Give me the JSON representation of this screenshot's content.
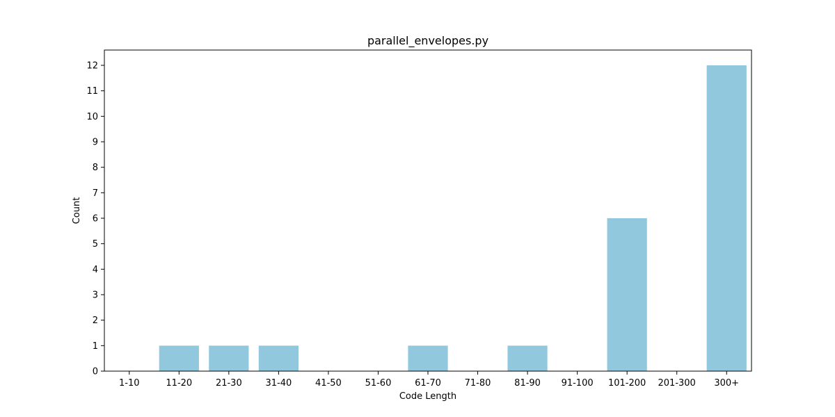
{
  "chart_data": {
    "type": "bar",
    "title": "parallel_envelopes.py",
    "xlabel": "Code Length",
    "ylabel": "Count",
    "categories": [
      "1-10",
      "11-20",
      "21-30",
      "31-40",
      "41-50",
      "51-60",
      "61-70",
      "71-80",
      "81-90",
      "91-100",
      "101-200",
      "201-300",
      "300+"
    ],
    "values": [
      0,
      1,
      1,
      1,
      0,
      0,
      1,
      0,
      1,
      0,
      6,
      0,
      12
    ],
    "ylim": [
      0,
      12.6
    ],
    "yticks": [
      0,
      1,
      2,
      3,
      4,
      5,
      6,
      7,
      8,
      9,
      10,
      11,
      12
    ],
    "grid": false,
    "bar_color": "#92c8dd"
  }
}
